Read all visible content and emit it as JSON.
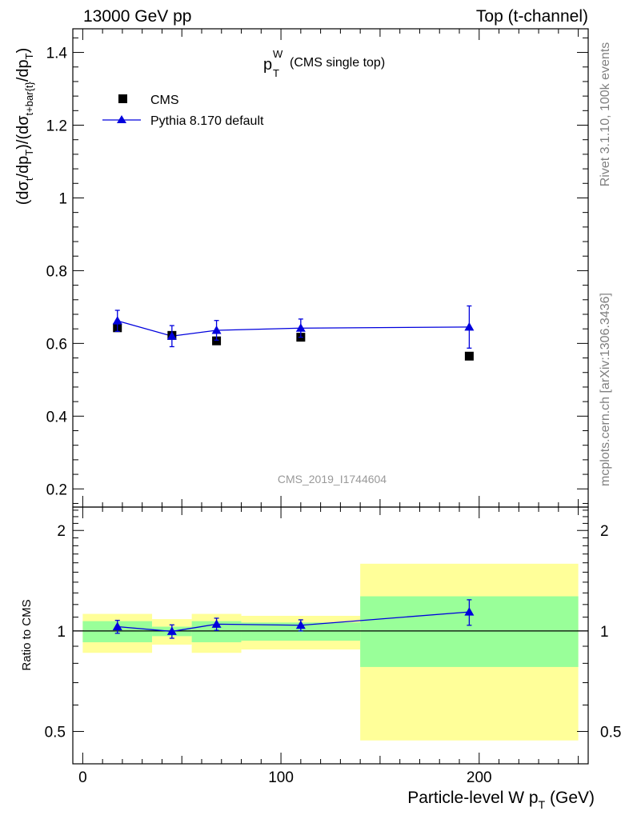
{
  "header": {
    "left": "13000 GeV pp",
    "right": "Top (t-channel)"
  },
  "side_labels": {
    "rivet": "Rivet 3.1.10,  100k events",
    "mcplots": "mcplots.cern.ch [arXiv:1306.3436]"
  },
  "chart_data": [
    {
      "type": "scatter",
      "title_main": "p",
      "title_sub": "T",
      "title_sup": "W",
      "title_extra": "(CMS single top)",
      "watermark": "CMS_2019_I1744604",
      "ylabel": "(dσ_t/dp_T)/(dσ_t+bar{t}/dp_T)",
      "ylim": [
        0.15,
        1.465
      ],
      "yticks": [
        "0.2",
        "0.4",
        "0.6",
        "0.8",
        "1",
        "1.2",
        "1.4"
      ],
      "legend_position": "top-left",
      "series": [
        {
          "name": "CMS",
          "marker": "square",
          "color": "#000000",
          "x": [
            17.5,
            45,
            67.5,
            110,
            195
          ],
          "y": [
            0.643,
            0.622,
            0.607,
            0.617,
            0.565
          ]
        },
        {
          "name": "Pythia 8.170 default",
          "marker": "triangle",
          "color": "#0000dd",
          "x": [
            17.5,
            45,
            67.5,
            110,
            195
          ],
          "y": [
            0.662,
            0.62,
            0.636,
            0.642,
            0.645
          ],
          "err": [
            0.029,
            0.029,
            0.027,
            0.025,
            0.058
          ]
        }
      ]
    },
    {
      "type": "scatter",
      "ylabel": "Ratio to CMS",
      "xlabel": "Particle-level W p_T (GeV)",
      "xlim": [
        -5,
        255
      ],
      "xticks": [
        "0",
        "100",
        "200"
      ],
      "ylim": [
        0.4,
        2.35
      ],
      "log_scale_y": true,
      "yticks": [
        "0.5",
        "1",
        "2"
      ],
      "reference_line": 1,
      "bands": [
        {
          "x0": 0,
          "x1": 35,
          "inner": [
            0.925,
            1.07
          ],
          "outer": [
            0.86,
            1.125
          ]
        },
        {
          "x0": 35,
          "x1": 55,
          "inner": [
            0.965,
            1.03
          ],
          "outer": [
            0.91,
            1.085
          ]
        },
        {
          "x0": 55,
          "x1": 80,
          "inner": [
            0.925,
            1.07
          ],
          "outer": [
            0.86,
            1.125
          ]
        },
        {
          "x0": 80,
          "x1": 140,
          "inner": [
            0.935,
            1.06
          ],
          "outer": [
            0.88,
            1.11
          ]
        },
        {
          "x0": 140,
          "x1": 250,
          "inner": [
            0.78,
            1.27
          ],
          "outer": [
            0.47,
            1.59
          ]
        }
      ],
      "band_colors": {
        "inner": "#99ff99",
        "outer": "#ffff99"
      },
      "series": [
        {
          "name": "Pythia 8.170 default",
          "marker": "triangle",
          "color": "#0000dd",
          "x": [
            17.5,
            45,
            67.5,
            110,
            195
          ],
          "y": [
            1.03,
            0.997,
            1.048,
            1.04,
            1.14
          ],
          "err": [
            0.046,
            0.046,
            0.044,
            0.04,
            0.1
          ]
        }
      ]
    }
  ]
}
